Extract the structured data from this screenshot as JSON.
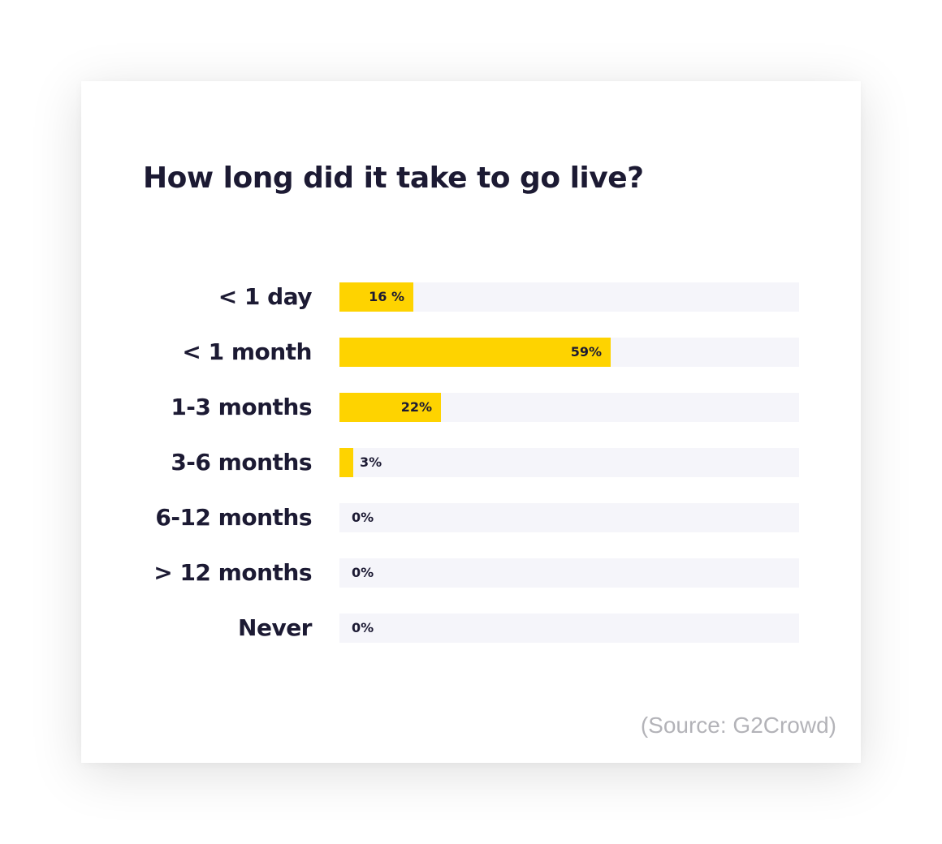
{
  "chart_data": {
    "type": "bar",
    "orientation": "horizontal",
    "title": "How long did it take to go live?",
    "categories": [
      "< 1 day",
      "< 1 month",
      "1-3 months",
      "3-6 months",
      "6-12 months",
      "> 12 months",
      "Never"
    ],
    "values": [
      16,
      59,
      22,
      3,
      0,
      0,
      0
    ],
    "value_labels": [
      "16 %",
      "59%",
      "22%",
      "3%",
      "0%",
      "0%",
      "0%"
    ],
    "xlim": [
      0,
      100
    ],
    "unit": "%",
    "grid": false,
    "legend": "none"
  },
  "colors": {
    "bar_fill": "#fed300",
    "bar_track": "#f5f5fa",
    "text": "#1c1a33",
    "source_text": "#b3b3b8"
  },
  "source": "(Source: G2Crowd)"
}
